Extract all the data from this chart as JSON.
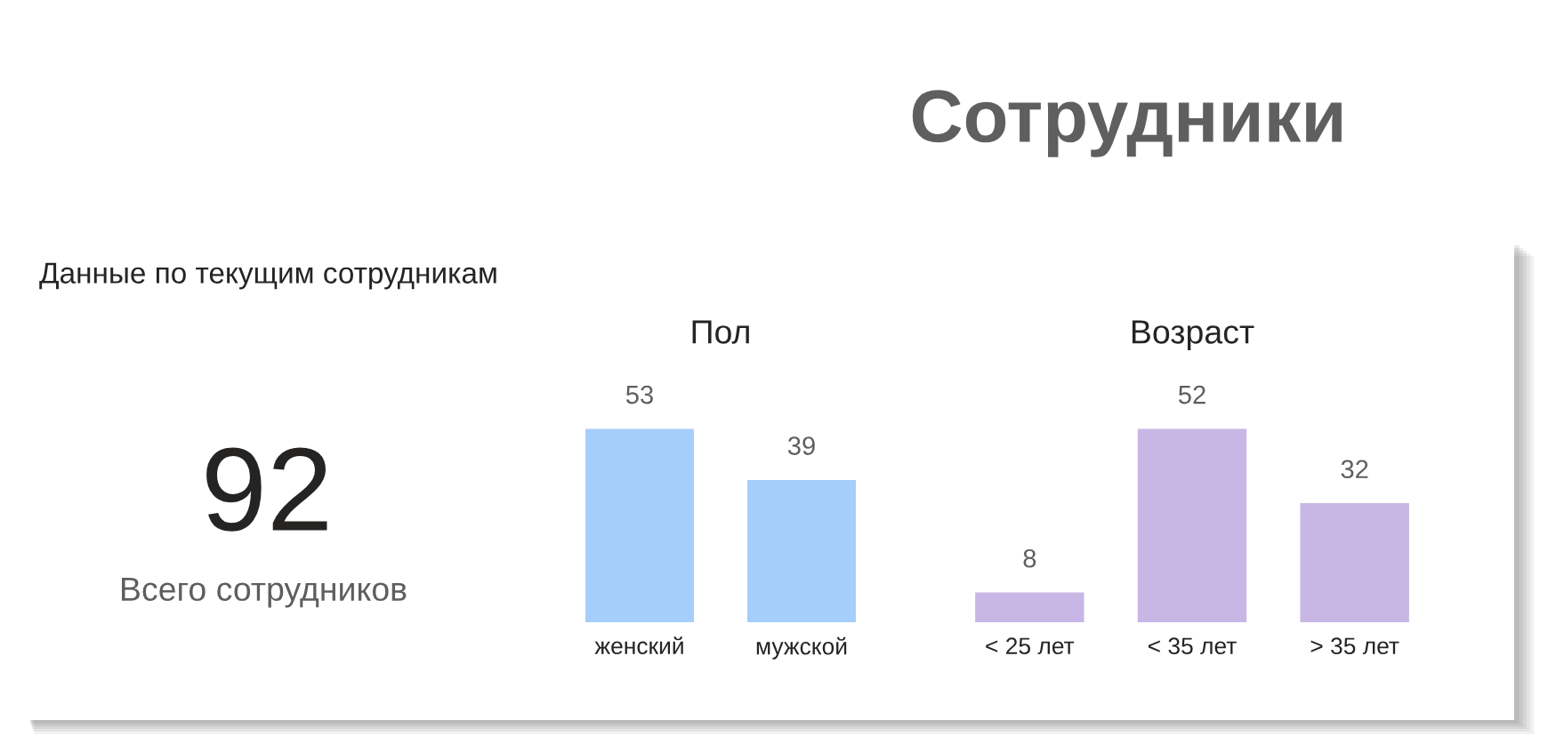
{
  "chart_data": [
    {
      "type": "other",
      "title": "Сотрудники",
      "subtitle": "Данные по текущим сотрудникам",
      "annotations": [
        "92",
        "Всего сотрудников"
      ]
    },
    {
      "type": "bar",
      "title": "Пол",
      "categories": [
        "женский",
        "мужской"
      ],
      "values": [
        53,
        39
      ],
      "color": "#a6cefc",
      "data_labels": true,
      "tick_labels": "x"
    },
    {
      "type": "bar",
      "title": "Возраст",
      "categories": [
        "< 25 лет",
        "< 35 лет",
        "> 35 лет"
      ],
      "values": [
        8,
        52,
        32
      ],
      "color": "#c8b6e5",
      "data_labels": true,
      "tick_labels": "x"
    }
  ]
}
